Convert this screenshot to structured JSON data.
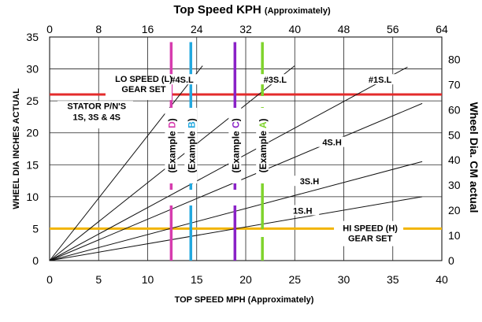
{
  "chart_data": {
    "type": "line",
    "title": {
      "main": "Top Speed KPH",
      "sub": "(Approximately)"
    },
    "x_bottom": {
      "label": "TOP SPEED MPH",
      "label_sub": "(Approximately)",
      "range": [
        0,
        40
      ],
      "ticks": [
        "0",
        "5",
        "10",
        "15",
        "20",
        "25",
        "30",
        "35",
        "40"
      ]
    },
    "x_top": {
      "range": [
        0,
        64
      ],
      "ticks": [
        "0",
        "8",
        "16",
        "24",
        "32",
        "40",
        "48",
        "56",
        "64"
      ]
    },
    "y_left": {
      "label": "WHEEL DIA INCHES ACTUAL",
      "range": [
        0,
        35
      ],
      "ticks": [
        "0",
        "5",
        "10",
        "15",
        "20",
        "25",
        "30",
        "35"
      ]
    },
    "y_right": {
      "label": "Wheel Dia. CM actual",
      "range": [
        0,
        88.9
      ],
      "ticks": [
        "0",
        "10",
        "20",
        "30",
        "40",
        "50",
        "60",
        "70",
        "80"
      ]
    },
    "grid": true,
    "series": [
      {
        "name": "1S.H",
        "x": [
          0,
          38
        ],
        "y": [
          0,
          10
        ]
      },
      {
        "name": "3S.H",
        "x": [
          0,
          38
        ],
        "y": [
          0,
          15.5
        ]
      },
      {
        "name": "4S.H",
        "x": [
          0,
          38
        ],
        "y": [
          0,
          24.6
        ]
      },
      {
        "name": "#1S.L",
        "x": [
          0,
          36.5
        ],
        "y": [
          0,
          30.3
        ]
      },
      {
        "name": "#3S.L",
        "x": [
          0,
          25
        ],
        "y": [
          0,
          30.5
        ]
      },
      {
        "name": "#4S.L",
        "x": [
          0,
          15.6
        ],
        "y": [
          0,
          30.5
        ]
      }
    ],
    "reference_lines": [
      {
        "orientation": "horizontal",
        "value": 26,
        "color": "#e32b2b",
        "label": "LO SPEED (L) GEAR SET"
      },
      {
        "orientation": "horizontal",
        "value": 5,
        "color": "#f2b400",
        "label": "HI SPEED (H) GEAR SET"
      }
    ],
    "examples": [
      {
        "label": "(Example D)",
        "letter": "D",
        "x": 12.4,
        "color": "#d63cae"
      },
      {
        "label": "(Example B)",
        "letter": "B",
        "x": 14.4,
        "color": "#22a8df"
      },
      {
        "label": "(Example C)",
        "letter": "C",
        "x": 18.9,
        "color": "#8a22c7"
      },
      {
        "label": "(Example A)",
        "letter": "A",
        "x": 21.7,
        "color": "#7fd32c"
      }
    ],
    "annotations": {
      "lo_line1": "LO SPEED (L)",
      "lo_line2": "GEAR SET",
      "hi_line1": "HI SPEED (H)",
      "hi_line2": "GEAR SET",
      "stator1": "STATOR P/N'S",
      "stator2": "1S, 3S & 4S"
    }
  }
}
